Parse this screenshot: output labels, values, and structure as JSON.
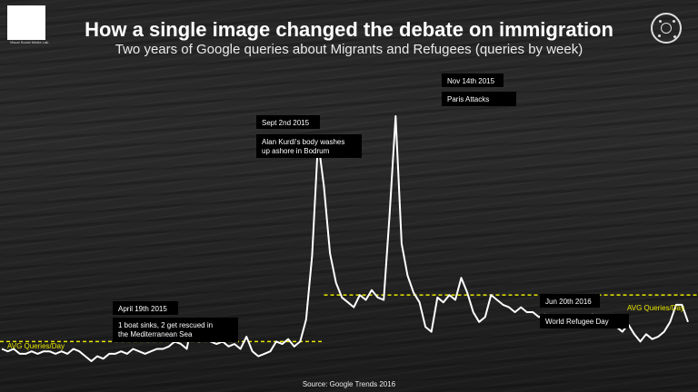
{
  "title": "How a single image changed the debate on immigration",
  "subtitle": "Two years of Google queries about Migrants and Refugees (queries by week)",
  "logo_text": "Visual Social Media Lab",
  "source": "Source: Google Trends 2016",
  "colors": {
    "line": "#ffffff",
    "avg": "#e6e600",
    "callout_bg": "#000000"
  },
  "annotations": [
    {
      "date": "April 19th 2015",
      "text": "1 boat sinks, 2 get rescued in\nthe Mediterranean Sea"
    },
    {
      "date": "Sept 2nd 2015",
      "text": "Alan Kurdi's body washes\nup ashore in Bodrum"
    },
    {
      "date": "Nov 14th 2015",
      "text": "Paris Attacks"
    },
    {
      "date": "Jun 20th 2016",
      "text": "World Refugee Day"
    }
  ],
  "avg_labels": [
    "AVG Queries/Day",
    "AVG Queries/Day"
  ],
  "chart_data": {
    "type": "line",
    "title": "How a single image changed the debate on immigration",
    "subtitle": "Two years of Google queries about Migrants and Refugees (queries by week)",
    "x_axis": "weeks",
    "y_axis_shown": false,
    "grid": false,
    "values": [
      5,
      4,
      5,
      3,
      3,
      4,
      3,
      4,
      4,
      3,
      4,
      3,
      5,
      4,
      2,
      0,
      2,
      1,
      3,
      3,
      4,
      3,
      5,
      4,
      3,
      4,
      5,
      5,
      6,
      8,
      7,
      5,
      17,
      8,
      9,
      8,
      7,
      8,
      6,
      7,
      5,
      10,
      4,
      2,
      3,
      4,
      8,
      7,
      9,
      6,
      8,
      17,
      43,
      90,
      71,
      44,
      32,
      26,
      24,
      22,
      27,
      25,
      29,
      26,
      25,
      60,
      100,
      48,
      35,
      28,
      24,
      14,
      12,
      26,
      24,
      27,
      25,
      34,
      28,
      20,
      16,
      18,
      27,
      25,
      23,
      22,
      20,
      22,
      20,
      20,
      18,
      19,
      17,
      18,
      16,
      17,
      18,
      16,
      17,
      19,
      15,
      15,
      17,
      14,
      12,
      15,
      11,
      8,
      11,
      9,
      10,
      12,
      16,
      23,
      23,
      16
    ],
    "avg_before": 8,
    "avg_after": 27,
    "avg_split_index": 54,
    "ylim": [
      0,
      100
    ]
  }
}
